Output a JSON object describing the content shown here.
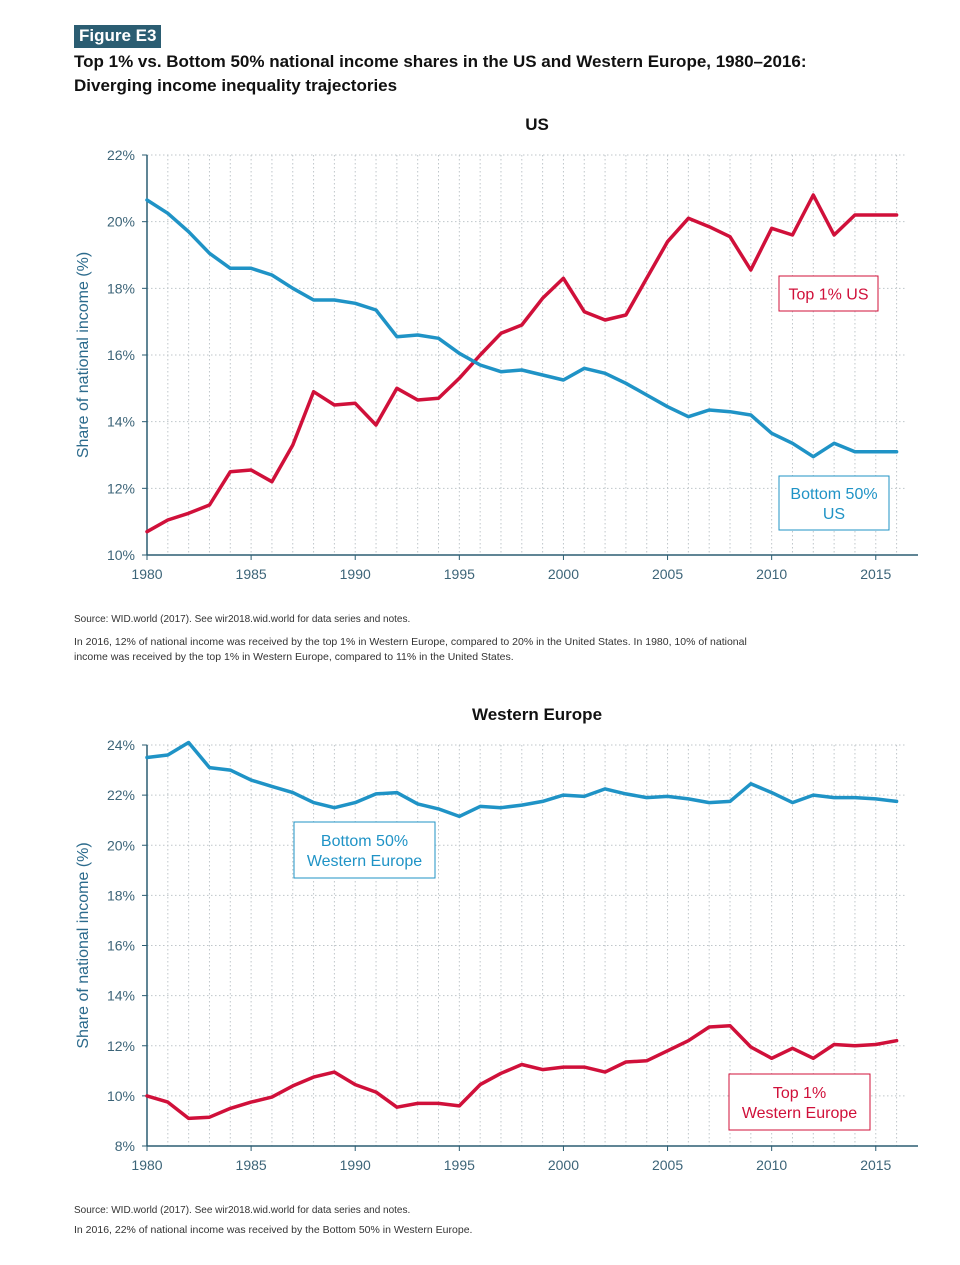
{
  "figure": {
    "label": "Figure E3",
    "title_line1": "Top 1% vs. Bottom 50% national income shares in the US and Western Europe, 1980–2016:",
    "title_line2": "Diverging income inequality trajectories"
  },
  "colors": {
    "top": "#d0103a",
    "bottom": "#1f93c6",
    "axis": "#2b5d72",
    "grid": "#bfc6ca"
  },
  "chart_data": [
    {
      "type": "line",
      "title": "US",
      "ylabel": "Share of national income (%)",
      "xlabel": "",
      "ylim": [
        10,
        22
      ],
      "yticks": [
        "10%",
        "12%",
        "14%",
        "16%",
        "18%",
        "20%",
        "22%"
      ],
      "ytick_values": [
        10,
        12,
        14,
        16,
        18,
        20,
        22
      ],
      "xlim": [
        1980,
        2016.5
      ],
      "xticks": [
        "1980",
        "1985",
        "1990",
        "1995",
        "2000",
        "2005",
        "2010",
        "2015"
      ],
      "xtick_values": [
        1980,
        1985,
        1990,
        1995,
        2000,
        2005,
        2010,
        2015
      ],
      "grid": true,
      "x": [
        1980,
        1981,
        1982,
        1983,
        1984,
        1985,
        1986,
        1987,
        1988,
        1989,
        1990,
        1991,
        1992,
        1993,
        1994,
        1995,
        1996,
        1997,
        1998,
        1999,
        2000,
        2001,
        2002,
        2003,
        2004,
        2005,
        2006,
        2007,
        2008,
        2009,
        2010,
        2011,
        2012,
        2013,
        2014,
        2015,
        2016
      ],
      "series": [
        {
          "key": "top",
          "label_lines": [
            "Top 1% US"
          ],
          "values": [
            10.7,
            11.05,
            11.25,
            11.5,
            12.5,
            12.55,
            12.2,
            13.3,
            14.9,
            14.5,
            14.55,
            13.9,
            15.0,
            14.65,
            14.7,
            15.3,
            16.0,
            16.65,
            16.9,
            17.7,
            18.3,
            17.3,
            17.05,
            17.2,
            18.3,
            19.4,
            20.1,
            19.85,
            19.55,
            18.55,
            19.8,
            19.6,
            20.8,
            19.6,
            20.2,
            20.2,
            20.2
          ]
        },
        {
          "key": "bottom",
          "label_lines": [
            "Bottom 50%",
            "US"
          ],
          "values": [
            20.65,
            20.25,
            19.7,
            19.05,
            18.6,
            18.6,
            18.4,
            18.0,
            17.65,
            17.65,
            17.55,
            17.35,
            16.55,
            16.6,
            16.5,
            16.05,
            15.7,
            15.5,
            15.55,
            15.4,
            15.25,
            15.6,
            15.45,
            15.15,
            14.8,
            14.45,
            14.15,
            14.35,
            14.3,
            14.2,
            13.65,
            13.35,
            12.95,
            13.35,
            13.1,
            13.1,
            13.1
          ]
        }
      ]
    },
    {
      "type": "line",
      "title": "Western Europe",
      "ylabel": "Share of national income (%)",
      "xlabel": "",
      "ylim": [
        8,
        24
      ],
      "yticks": [
        "8%",
        "10%",
        "12%",
        "14%",
        "16%",
        "18%",
        "20%",
        "22%",
        "24%"
      ],
      "ytick_values": [
        8,
        10,
        12,
        14,
        16,
        18,
        20,
        22,
        24
      ],
      "xlim": [
        1980,
        2016.5
      ],
      "xticks": [
        "1980",
        "1985",
        "1990",
        "1995",
        "2000",
        "2005",
        "2010",
        "2015"
      ],
      "xtick_values": [
        1980,
        1985,
        1990,
        1995,
        2000,
        2005,
        2010,
        2015
      ],
      "grid": true,
      "x": [
        1980,
        1981,
        1982,
        1983,
        1984,
        1985,
        1986,
        1987,
        1988,
        1989,
        1990,
        1991,
        1992,
        1993,
        1994,
        1995,
        1996,
        1997,
        1998,
        1999,
        2000,
        2001,
        2002,
        2003,
        2004,
        2005,
        2006,
        2007,
        2008,
        2009,
        2010,
        2011,
        2012,
        2013,
        2014,
        2015,
        2016
      ],
      "series": [
        {
          "key": "bottom",
          "label_lines": [
            "Bottom 50%",
            "Western Europe"
          ],
          "values": [
            23.5,
            23.6,
            24.1,
            23.1,
            23.0,
            22.6,
            22.35,
            22.1,
            21.7,
            21.5,
            21.7,
            22.05,
            22.1,
            21.65,
            21.45,
            21.15,
            21.55,
            21.5,
            21.6,
            21.75,
            22.0,
            21.95,
            22.25,
            22.05,
            21.9,
            21.95,
            21.85,
            21.7,
            21.75,
            22.45,
            22.1,
            21.7,
            22.0,
            21.9,
            21.9,
            21.85,
            21.75
          ]
        },
        {
          "key": "top",
          "label_lines": [
            "Top 1%",
            "Western Europe"
          ],
          "values": [
            10.0,
            9.75,
            9.1,
            9.15,
            9.5,
            9.75,
            9.95,
            10.4,
            10.75,
            10.95,
            10.45,
            10.15,
            9.55,
            9.7,
            9.7,
            9.6,
            10.45,
            10.9,
            11.25,
            11.05,
            11.15,
            11.15,
            10.95,
            11.35,
            11.4,
            11.8,
            12.2,
            12.75,
            12.8,
            11.95,
            11.5,
            11.9,
            11.5,
            12.05,
            12.0,
            12.05,
            12.2
          ]
        }
      ]
    }
  ],
  "notes": {
    "us_source": "Source:  WID.world (2017). See wir2018.wid.world for data series and notes.",
    "us_line1": "In 2016, 12% of national income was received by the top 1% in Western Europe, compared to 20% in the United States. In 1980, 10% of national",
    "us_line2": "income was received by the top 1% in Western Europe, compared to 11% in the United States.",
    "we_source": "Source:  WID.world (2017). See wir2018.wid.world for data series and notes.",
    "we_line1": "In 2016, 22% of national income was received by the Bottom 50% in Western Europe."
  }
}
